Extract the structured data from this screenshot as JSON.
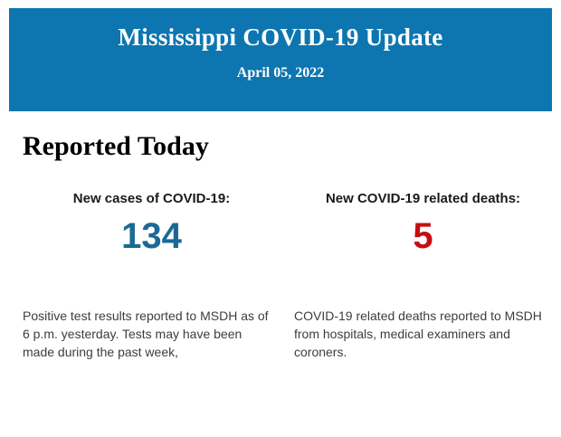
{
  "header": {
    "title": "Mississippi COVID-19 Update",
    "date": "April 05, 2022",
    "background_color": "#0d76b0",
    "text_color": "#ffffff"
  },
  "main": {
    "section_title": "Reported Today",
    "stats": [
      {
        "label": "New cases of COVID-19:",
        "value": "134",
        "value_color": "#1b6a96",
        "description": "Positive test results reported to MSDH as of 6 p.m. yesterday. Tests may have been made during the past week,"
      },
      {
        "label": "New COVID-19 related deaths:",
        "value": "5",
        "value_color": "#c60d10",
        "description": "COVID-19 related deaths reported to MSDH from hospitals, medical examiners and coroners."
      }
    ]
  }
}
